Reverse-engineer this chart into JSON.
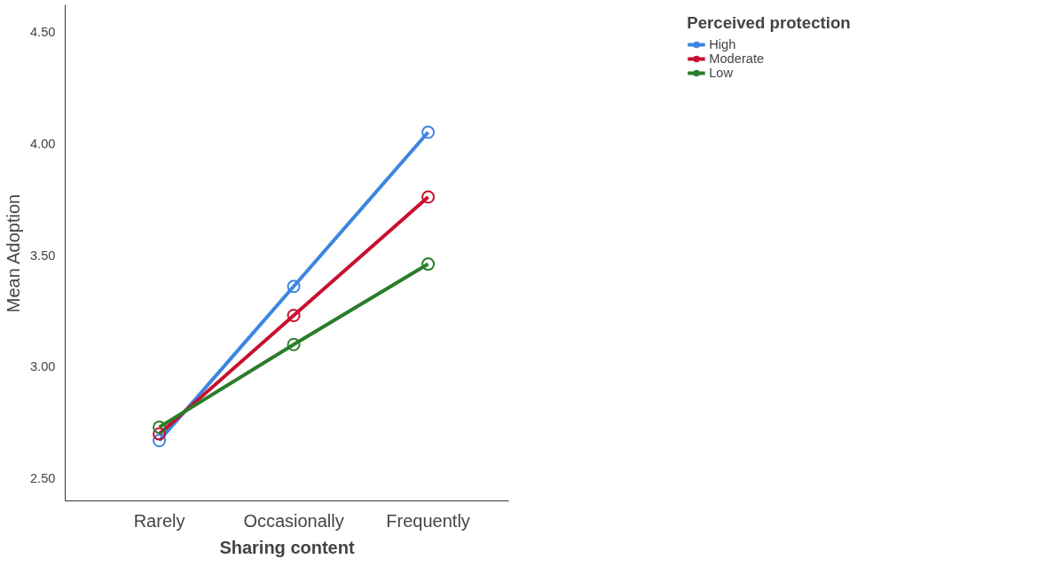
{
  "chart_data": {
    "type": "line",
    "xlabel": "Sharing content",
    "ylabel": "Mean Adoption",
    "legend_title": "Perceived protection",
    "categories": [
      "Rarely",
      "Occasionally",
      "Frequently"
    ],
    "series": [
      {
        "name": "High",
        "color": "#3d86e0",
        "values": [
          2.67,
          3.36,
          4.05
        ]
      },
      {
        "name": "Moderate",
        "color": "#c8102e",
        "values": [
          2.7,
          3.23,
          3.76
        ]
      },
      {
        "name": "Low",
        "color": "#2a7d2a",
        "values": [
          2.73,
          3.1,
          3.46
        ]
      }
    ],
    "ylim": [
      2.4,
      4.62
    ],
    "yticks": [
      {
        "value": 2.5,
        "label": "2.50"
      },
      {
        "value": 3,
        "label": "3.00"
      },
      {
        "value": 3.5,
        "label": "3.50"
      },
      {
        "value": 4,
        "label": "4.00"
      },
      {
        "value": 4.5,
        "label": "4.50"
      }
    ],
    "grid": false,
    "legend": "top right",
    "marker": "circle",
    "line_style": "solid"
  }
}
